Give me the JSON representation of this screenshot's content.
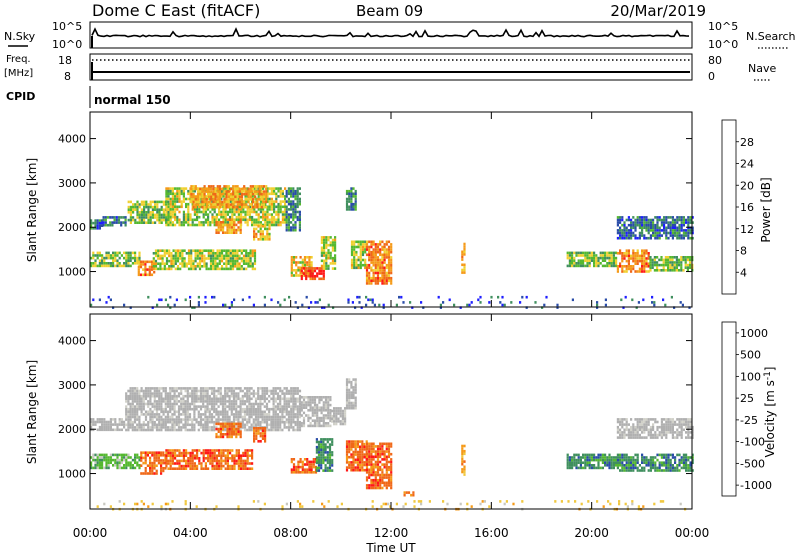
{
  "header": {
    "title": "Dome C East (fitACF)",
    "beam": "Beam 09",
    "date": "20/Mar/2019"
  },
  "nsky_panel": {
    "left_label": "N.Sky",
    "left_ticks": [
      "10^5",
      "10^0"
    ],
    "right_ticks": [
      "10^5",
      "10^0"
    ],
    "right_label": "N.Search"
  },
  "freq_panel": {
    "left_label_line1": "Freq.",
    "left_label_line2": "[MHz]",
    "left_ticks": [
      "18",
      "8"
    ],
    "right_ticks": [
      "80",
      "0"
    ],
    "right_label": "Nave"
  },
  "cpid_panel": {
    "label": "CPID",
    "value": "normal 150"
  },
  "time_axis": {
    "xlabel": "Time UT",
    "ticks": [
      "00:00",
      "04:00",
      "08:00",
      "12:00",
      "16:00",
      "20:00",
      "00:00"
    ]
  },
  "colors": {
    "power_scale": [
      "#1e1eff",
      "#2a4ca8",
      "#3f8f5e",
      "#55b830",
      "#f0d030",
      "#f59a18",
      "#f06818",
      "#ff1818"
    ],
    "velocity_scale": [
      "#ff1818",
      "#f06818",
      "#f59a18",
      "#f0c840",
      "#c8c8c0",
      "#55b830",
      "#3f8f5e",
      "#2a4ca8"
    ],
    "ground_scatter": "#b0b0b0"
  },
  "chart_data": [
    {
      "type": "heatmap",
      "title": "",
      "xlabel": "",
      "ylabel": "Slant Range [km]",
      "xlim": [
        0,
        24
      ],
      "ylim": [
        200,
        4600
      ],
      "yticks": [
        "1000",
        "2000",
        "3000",
        "4000"
      ],
      "colorbar": {
        "label": "Power [dB]",
        "tick_values": [
          4,
          8,
          12,
          16,
          20,
          24,
          28
        ],
        "tick_labels": [
          "4",
          "8",
          "12",
          "16",
          "20",
          "24",
          "28"
        ],
        "range": [
          0,
          32
        ]
      },
      "regions": [
        {
          "x0": 0.0,
          "x1": 0.5,
          "y0": 2000,
          "y1": 2180,
          "value": 8
        },
        {
          "x0": 0.5,
          "x1": 1.4,
          "y0": 2050,
          "y1": 2250,
          "value": 8
        },
        {
          "x0": 1.5,
          "x1": 3.2,
          "y0": 2100,
          "y1": 2600,
          "value": 14
        },
        {
          "x0": 3.0,
          "x1": 7.8,
          "y0": 2050,
          "y1": 2900,
          "value": 16
        },
        {
          "x0": 4.0,
          "x1": 7.0,
          "y0": 2450,
          "y1": 2950,
          "value": 22
        },
        {
          "x0": 7.8,
          "x1": 8.4,
          "y0": 1950,
          "y1": 2900,
          "value": 9
        },
        {
          "x0": 0.0,
          "x1": 2.0,
          "y0": 1150,
          "y1": 1450,
          "value": 14
        },
        {
          "x0": 1.9,
          "x1": 2.6,
          "y0": 950,
          "y1": 1250,
          "value": 24
        },
        {
          "x0": 2.5,
          "x1": 6.6,
          "y0": 1080,
          "y1": 1500,
          "value": 16
        },
        {
          "x0": 5.0,
          "x1": 6.0,
          "y0": 1900,
          "y1": 2200,
          "value": 22
        },
        {
          "x0": 6.5,
          "x1": 7.2,
          "y0": 1750,
          "y1": 2050,
          "value": 20
        },
        {
          "x0": 8.0,
          "x1": 8.8,
          "y0": 900,
          "y1": 1350,
          "value": 20
        },
        {
          "x0": 8.4,
          "x1": 9.3,
          "y0": 850,
          "y1": 1100,
          "value": 28
        },
        {
          "x0": 9.2,
          "x1": 9.8,
          "y0": 1050,
          "y1": 1800,
          "value": 16
        },
        {
          "x0": 10.4,
          "x1": 11.0,
          "y0": 1100,
          "y1": 1700,
          "value": 16
        },
        {
          "x0": 11.0,
          "x1": 12.0,
          "y0": 750,
          "y1": 1700,
          "value": 24
        },
        {
          "x0": 14.8,
          "x1": 14.95,
          "y0": 1000,
          "y1": 1650,
          "value": 22
        },
        {
          "x0": 19.0,
          "x1": 21.0,
          "y0": 1150,
          "y1": 1450,
          "value": 14
        },
        {
          "x0": 21.0,
          "x1": 22.3,
          "y0": 1000,
          "y1": 1500,
          "value": 24
        },
        {
          "x0": 22.3,
          "x1": 24.0,
          "y0": 1050,
          "y1": 1350,
          "value": 14
        },
        {
          "x0": 21.0,
          "x1": 24.0,
          "y0": 1750,
          "y1": 2250,
          "value": 8
        },
        {
          "x0": 10.2,
          "x1": 10.6,
          "y0": 2400,
          "y1": 2900,
          "value": 10
        },
        {
          "x0": 0.0,
          "x1": 24.0,
          "y0": 200,
          "y1": 450,
          "value": 6
        }
      ]
    },
    {
      "type": "heatmap",
      "title": "",
      "xlabel": "Time UT",
      "ylabel": "Slant Range [km]",
      "xlim": [
        0,
        24
      ],
      "ylim": [
        200,
        4600
      ],
      "yticks": [
        "1000",
        "2000",
        "3000",
        "4000"
      ],
      "colorbar": {
        "label": "Velocity [m s^-1]",
        "tick_labels": [
          "-1000",
          "-500",
          "-100",
          "-25",
          "25",
          "100",
          "500",
          "1000"
        ],
        "bins": 8
      },
      "regions": [
        {
          "x0": 0.0,
          "x1": 1.4,
          "y0": 2000,
          "y1": 2250,
          "category": "ground"
        },
        {
          "x0": 1.4,
          "x1": 8.4,
          "y0": 2000,
          "y1": 2950,
          "category": "ground"
        },
        {
          "x0": 8.4,
          "x1": 9.6,
          "y0": 2100,
          "y1": 2750,
          "category": "ground"
        },
        {
          "x0": 9.6,
          "x1": 10.2,
          "y0": 2100,
          "y1": 2500,
          "category": "ground"
        },
        {
          "x0": 10.2,
          "x1": 10.6,
          "y0": 2500,
          "y1": 3150,
          "category": "ground"
        },
        {
          "x0": 0.0,
          "x1": 2.0,
          "y0": 1150,
          "y1": 1450,
          "bin": 5
        },
        {
          "x0": 2.0,
          "x1": 3.0,
          "y0": 1000,
          "y1": 1500,
          "bin": 1
        },
        {
          "x0": 3.0,
          "x1": 6.5,
          "y0": 1100,
          "y1": 1550,
          "bin": 1
        },
        {
          "x0": 5.0,
          "x1": 6.0,
          "y0": 1850,
          "y1": 2150,
          "bin": 1
        },
        {
          "x0": 6.5,
          "x1": 7.0,
          "y0": 1700,
          "y1": 2050,
          "bin": 1
        },
        {
          "x0": 8.0,
          "x1": 9.0,
          "y0": 1000,
          "y1": 1350,
          "bin": 1
        },
        {
          "x0": 9.0,
          "x1": 9.7,
          "y0": 1050,
          "y1": 1800,
          "bin": 6
        },
        {
          "x0": 10.2,
          "x1": 11.0,
          "y0": 1100,
          "y1": 1750,
          "bin": 1
        },
        {
          "x0": 11.0,
          "x1": 12.0,
          "y0": 700,
          "y1": 1700,
          "bin": 1
        },
        {
          "x0": 12.5,
          "x1": 12.9,
          "y0": 500,
          "y1": 600,
          "bin": 1
        },
        {
          "x0": 14.8,
          "x1": 14.95,
          "y0": 1000,
          "y1": 1650,
          "bin": 2
        },
        {
          "x0": 19.0,
          "x1": 21.0,
          "y0": 1150,
          "y1": 1450,
          "bin": 6
        },
        {
          "x0": 21.0,
          "x1": 24.0,
          "y0": 1050,
          "y1": 1450,
          "bin": 6
        },
        {
          "x0": 21.0,
          "x1": 24.0,
          "y0": 1800,
          "y1": 2250,
          "category": "ground"
        },
        {
          "x0": 0.0,
          "x1": 24.0,
          "y0": 200,
          "y1": 400,
          "bin": 3
        }
      ]
    }
  ]
}
